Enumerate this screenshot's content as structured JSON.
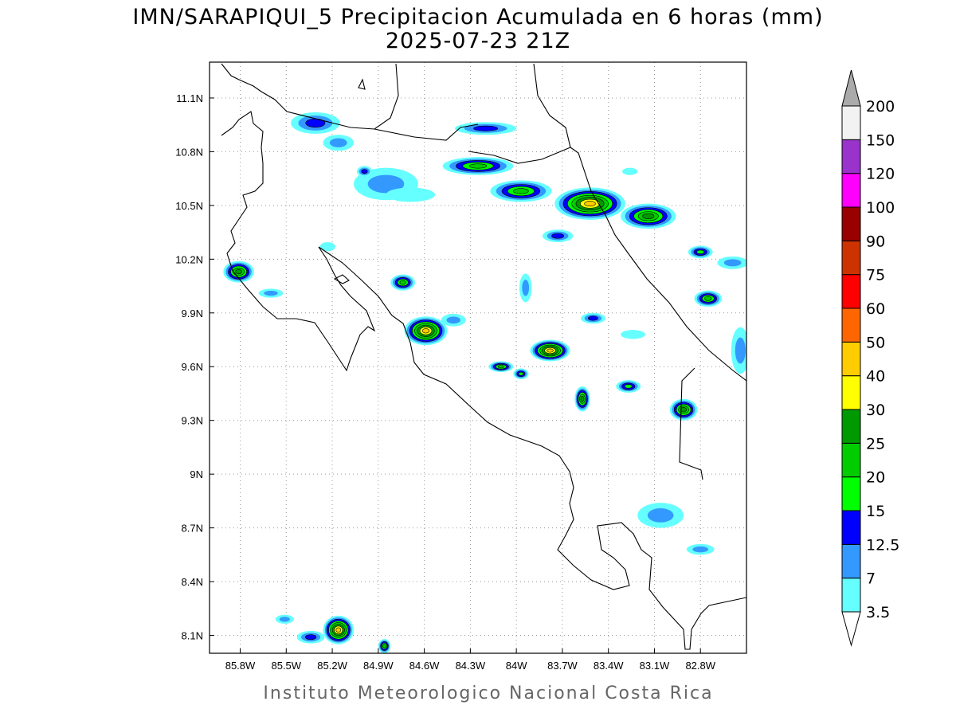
{
  "title_line1": "IMN/SARAPIQUI_5 Precipitacion Acumulada en 6 horas (mm)",
  "title_line2": "2025-07-23 21Z",
  "footer": "Instituto Meteorologico Nacional Costa Rica",
  "chart_data": {
    "type": "map-contour",
    "variable": "6-hour accumulated precipitation (mm)",
    "lon_range": [
      -86.0,
      -82.5
    ],
    "lat_range": [
      8.0,
      11.3
    ],
    "lon_ticks": [
      -85.8,
      -85.5,
      -85.2,
      -84.9,
      -84.6,
      -84.3,
      -84.0,
      -83.7,
      -83.4,
      -83.1,
      -82.8
    ],
    "lon_tick_labels": [
      "85.8W",
      "85.5W",
      "85.2W",
      "84.9W",
      "84.6W",
      "84.3W",
      "84W",
      "83.7W",
      "83.4W",
      "83.1W",
      "82.8W"
    ],
    "lat_ticks": [
      11.1,
      10.8,
      10.5,
      10.2,
      9.9,
      9.6,
      9.3,
      9.0,
      8.7,
      8.4,
      8.1
    ],
    "lat_tick_labels": [
      "11.1N",
      "10.8N",
      "10.5N",
      "10.2N",
      "9.9N",
      "9.6N",
      "9.3N",
      "9N",
      "8.7N",
      "8.4N",
      "8.1N"
    ],
    "grid": true,
    "colorbar": {
      "levels": [
        "3.5",
        "7",
        "12.5",
        "15",
        "20",
        "25",
        "30",
        "40",
        "50",
        "60",
        "75",
        "90",
        "100",
        "120",
        "150",
        "200"
      ],
      "colors": [
        "#66ffff",
        "#3399ff",
        "#0000ff",
        "#00ff00",
        "#00cc00",
        "#009900",
        "#ffff00",
        "#ffcc00",
        "#ff6600",
        "#ff0000",
        "#cc3300",
        "#990000",
        "#ff00ff",
        "#9933cc",
        "#f2f2f2"
      ],
      "under_color": "#ffffff",
      "over_color": "#aaaaaa"
    },
    "cells": [
      {
        "lon": -85.31,
        "lat": 10.96,
        "rlon": 0.16,
        "rlat": 0.06,
        "max_level": 2
      },
      {
        "lon": -85.16,
        "lat": 10.85,
        "rlon": 0.1,
        "rlat": 0.045,
        "max_level": 1
      },
      {
        "lon": -84.85,
        "lat": 10.62,
        "rlon": 0.21,
        "rlat": 0.09,
        "max_level": 1
      },
      {
        "lon": -84.99,
        "lat": 10.69,
        "rlon": 0.05,
        "rlat": 0.03,
        "max_level": 2
      },
      {
        "lon": -84.69,
        "lat": 10.56,
        "rlon": 0.16,
        "rlat": 0.04,
        "max_level": 0
      },
      {
        "lon": -84.2,
        "lat": 10.93,
        "rlon": 0.2,
        "rlat": 0.035,
        "max_level": 2
      },
      {
        "lon": -84.25,
        "lat": 10.72,
        "rlon": 0.23,
        "rlat": 0.05,
        "max_level": 4
      },
      {
        "lon": -83.97,
        "lat": 10.58,
        "rlon": 0.2,
        "rlat": 0.06,
        "max_level": 4
      },
      {
        "lon": -83.52,
        "lat": 10.51,
        "rlon": 0.23,
        "rlat": 0.09,
        "max_level": 7
      },
      {
        "lon": -83.14,
        "lat": 10.44,
        "rlon": 0.18,
        "rlat": 0.07,
        "max_level": 5
      },
      {
        "lon": -83.73,
        "lat": 10.33,
        "rlon": 0.1,
        "rlat": 0.035,
        "max_level": 2
      },
      {
        "lon": -82.8,
        "lat": 10.24,
        "rlon": 0.08,
        "rlat": 0.035,
        "max_level": 3
      },
      {
        "lon": -82.59,
        "lat": 10.18,
        "rlon": 0.1,
        "rlat": 0.035,
        "max_level": 1
      },
      {
        "lon": -82.75,
        "lat": 9.98,
        "rlon": 0.09,
        "rlat": 0.045,
        "max_level": 4
      },
      {
        "lon": -82.54,
        "lat": 9.69,
        "rlon": 0.06,
        "rlat": 0.13,
        "max_level": 1
      },
      {
        "lon": -85.81,
        "lat": 10.13,
        "rlon": 0.1,
        "rlat": 0.06,
        "max_level": 5
      },
      {
        "lon": -85.6,
        "lat": 10.01,
        "rlon": 0.08,
        "rlat": 0.025,
        "max_level": 1
      },
      {
        "lon": -84.74,
        "lat": 10.07,
        "rlon": 0.08,
        "rlat": 0.045,
        "max_level": 4
      },
      {
        "lon": -84.59,
        "lat": 9.8,
        "rlon": 0.14,
        "rlat": 0.08,
        "max_level": 7
      },
      {
        "lon": -84.41,
        "lat": 9.86,
        "rlon": 0.08,
        "rlat": 0.035,
        "max_level": 1
      },
      {
        "lon": -83.94,
        "lat": 10.04,
        "rlon": 0.04,
        "rlat": 0.08,
        "max_level": 1
      },
      {
        "lon": -83.78,
        "lat": 9.69,
        "rlon": 0.13,
        "rlat": 0.06,
        "max_level": 7
      },
      {
        "lon": -84.1,
        "lat": 9.6,
        "rlon": 0.08,
        "rlat": 0.03,
        "max_level": 4
      },
      {
        "lon": -83.97,
        "lat": 9.56,
        "rlon": 0.05,
        "rlat": 0.03,
        "max_level": 3
      },
      {
        "lon": -83.5,
        "lat": 9.87,
        "rlon": 0.08,
        "rlat": 0.03,
        "max_level": 2
      },
      {
        "lon": -83.24,
        "lat": 9.78,
        "rlon": 0.08,
        "rlat": 0.025,
        "max_level": 0
      },
      {
        "lon": -83.57,
        "lat": 9.42,
        "rlon": 0.05,
        "rlat": 0.07,
        "max_level": 5
      },
      {
        "lon": -83.27,
        "lat": 9.49,
        "rlon": 0.08,
        "rlat": 0.035,
        "max_level": 3
      },
      {
        "lon": -82.91,
        "lat": 9.36,
        "rlon": 0.09,
        "rlat": 0.06,
        "max_level": 5
      },
      {
        "lon": -83.06,
        "lat": 8.77,
        "rlon": 0.15,
        "rlat": 0.07,
        "max_level": 1
      },
      {
        "lon": -82.8,
        "lat": 8.58,
        "rlon": 0.09,
        "rlat": 0.03,
        "max_level": 1
      },
      {
        "lon": -85.16,
        "lat": 8.13,
        "rlon": 0.1,
        "rlat": 0.08,
        "max_level": 7
      },
      {
        "lon": -85.34,
        "lat": 8.09,
        "rlon": 0.09,
        "rlat": 0.035,
        "max_level": 2
      },
      {
        "lon": -85.51,
        "lat": 8.19,
        "rlon": 0.06,
        "rlat": 0.025,
        "max_level": 1
      },
      {
        "lon": -84.86,
        "lat": 8.04,
        "rlon": 0.04,
        "rlat": 0.04,
        "max_level": 4
      },
      {
        "lon": -85.23,
        "lat": 10.27,
        "rlon": 0.05,
        "rlat": 0.025,
        "max_level": 0
      },
      {
        "lon": -83.26,
        "lat": 10.69,
        "rlon": 0.05,
        "rlat": 0.02,
        "max_level": 0
      }
    ]
  }
}
